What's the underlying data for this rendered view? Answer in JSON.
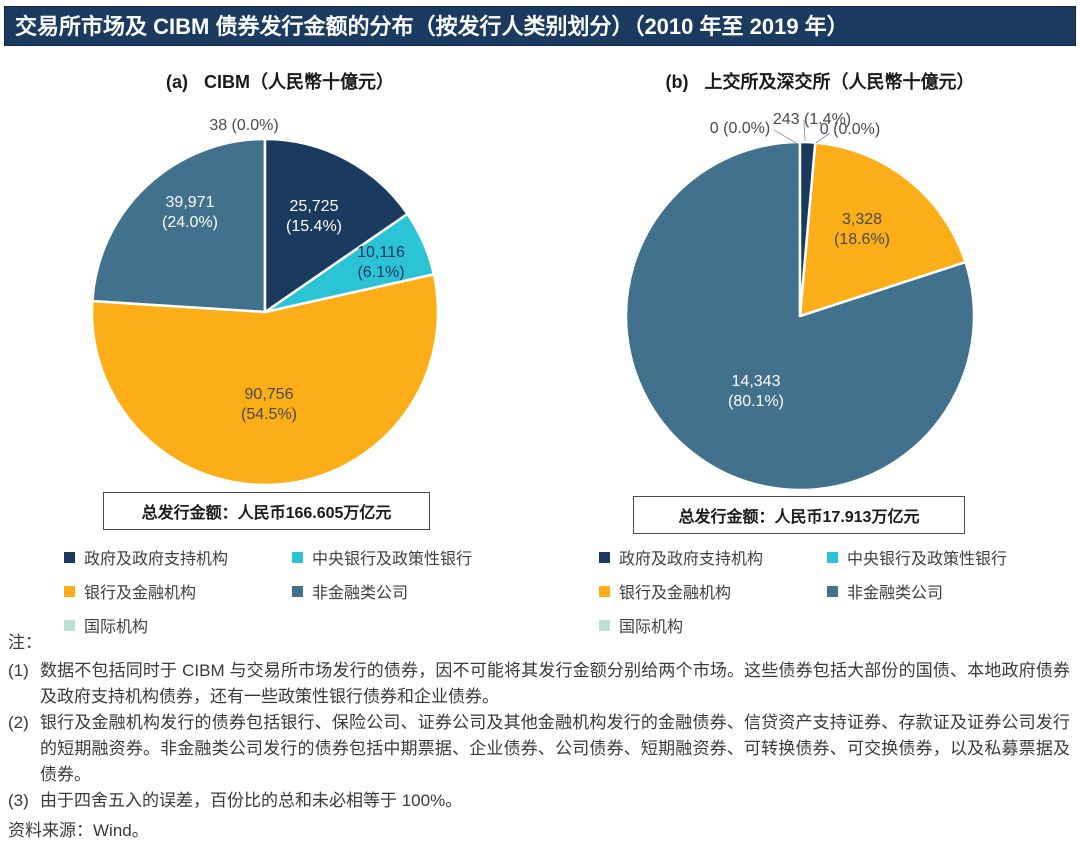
{
  "header": {
    "title": "交易所市场及 CIBM 债券发行金额的分布（按发行人类别划分）（2010 年至 2019 年）",
    "bg_color": "#1B3A5F"
  },
  "palette": {
    "navy": "#1B3A5F",
    "cyan": "#2BC4D6",
    "yellow": "#FBAE17",
    "slate": "#41718C",
    "mint": "#BFE0D5"
  },
  "charts": [
    {
      "heading": {
        "prefix": "(a)",
        "text": "CIBM（人民幣十億元）"
      },
      "total_box": "总发行金额：人民币166.605万亿元",
      "labels": {
        "gov": [
          "25,725",
          "(15.4%)"
        ],
        "central": [
          "10,116",
          "(6.1%)"
        ],
        "bank": [
          "90,756",
          "(54.5%)"
        ],
        "nonfin": [
          "39,971",
          "(24.0%)"
        ],
        "intl": "38 (0.0%)"
      }
    },
    {
      "heading": {
        "prefix": "(b)",
        "text": "上交所及深交所（人民幣十億元）"
      },
      "total_box": "总发行金额：人民币17.913万亿元",
      "labels": {
        "gov": "243 (1.4%)",
        "central": "0 (0.0%)",
        "bank": [
          "3,328",
          "(18.6%)"
        ],
        "nonfin": [
          "14,343",
          "(80.1%)"
        ],
        "intl": "0 (0.0%)"
      }
    }
  ],
  "chart_data": [
    {
      "type": "pie",
      "title": "(a) CIBM（人民幣十億元）",
      "unit": "人民幣十億元",
      "categories": [
        "政府及政府支持机构",
        "中央银行及政策性银行",
        "银行及金融机构",
        "非金融类公司",
        "国际机构"
      ],
      "values": [
        25725,
        10116,
        90756,
        39971,
        38
      ],
      "percents": [
        15.4,
        6.1,
        54.5,
        24.0,
        0.0
      ],
      "colors": [
        "#1B3A5F",
        "#2BC4D6",
        "#FBAE17",
        "#41718C",
        "#BFE0D5"
      ],
      "start_angle": "12-oclock",
      "direction": "clockwise",
      "total_label": "总发行金额：人民币166.605万亿元",
      "legend_position": "bottom"
    },
    {
      "type": "pie",
      "title": "(b) 上交所及深交所（人民幣十億元）",
      "unit": "人民幣十億元",
      "categories": [
        "政府及政府支持机构",
        "中央银行及政策性银行",
        "银行及金融机构",
        "非金融类公司",
        "国际机构"
      ],
      "values": [
        243,
        0,
        3328,
        14343,
        0
      ],
      "percents": [
        1.4,
        0.0,
        18.6,
        80.1,
        0.0
      ],
      "colors": [
        "#1B3A5F",
        "#2BC4D6",
        "#FBAE17",
        "#41718C",
        "#BFE0D5"
      ],
      "start_angle": "12-oclock",
      "direction": "clockwise",
      "total_label": "总发行金额：人民币17.913万亿元",
      "legend_position": "bottom"
    }
  ],
  "legend": {
    "items": [
      {
        "label": "政府及政府支持机构",
        "color": "#1B3A5F"
      },
      {
        "label": "中央银行及政策性银行",
        "color": "#2BC4D6"
      },
      {
        "label": "银行及金融机构",
        "color": "#FBAE17"
      },
      {
        "label": "非金融类公司",
        "color": "#41718C"
      },
      {
        "label": "国际机构",
        "color": "#BFE0D5"
      }
    ]
  },
  "notes": {
    "heading": "注：",
    "items": [
      {
        "num": "(1)",
        "text": "数据不包括同时于 CIBM 与交易所市场发行的债券，因不可能将其发行金额分别给两个市场。这些债券包括大部份的国债、本地政府债券及政府支持机构债券，还有一些政策性银行债券和企业债券。"
      },
      {
        "num": "(2)",
        "text": "银行及金融机构发行的债券包括银行、保险公司、证券公司及其他金融机构发行的金融债券、信贷资产支持证券、存款证及证券公司发行的短期融资券。非金融类公司发行的债券包括中期票据、企业债券、公司债券、短期融资券、可转换债券、可交换债券，以及私募票据及债券。"
      },
      {
        "num": "(3)",
        "text": "由于四舍五入的误差，百份比的总和未必相等于 100%。"
      }
    ],
    "source": "资料来源：Wind。"
  }
}
